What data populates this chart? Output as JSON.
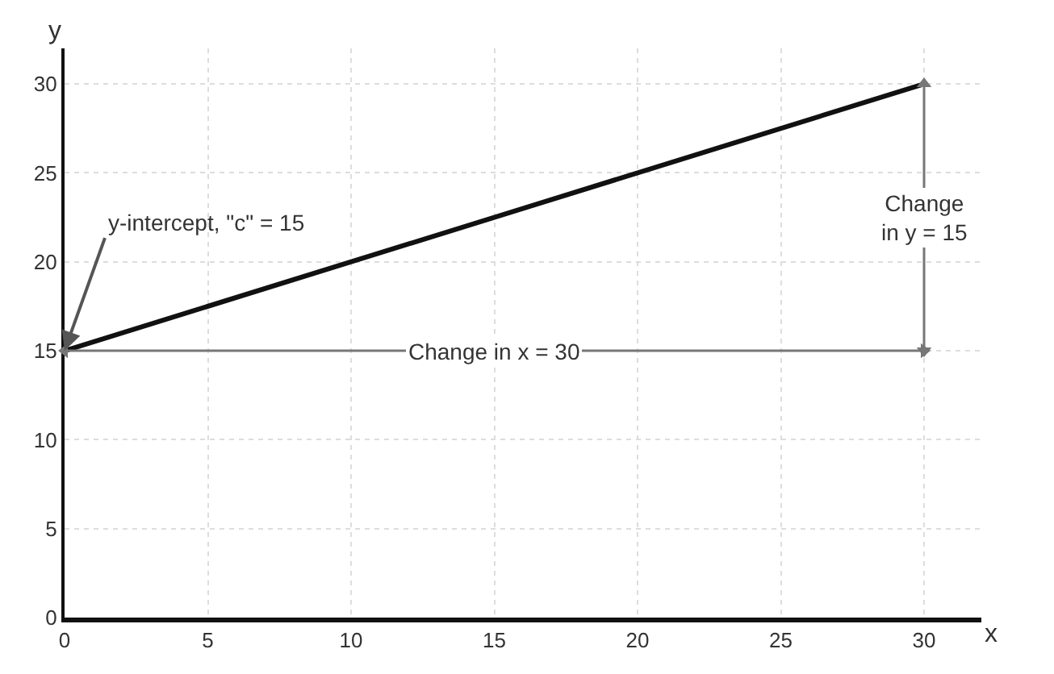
{
  "chart_data": {
    "type": "line",
    "xlabel": "x",
    "ylabel": "y",
    "x": [
      0,
      30
    ],
    "series": [
      {
        "color": "#111111",
        "values": [
          15,
          30
        ]
      },
      {
        "name": "Change in x = 30",
        "color": "#777777",
        "values": [
          15,
          15
        ],
        "marker": "triangle"
      },
      {
        "name": "Change\nin y = 15",
        "color": "#777777",
        "x": [
          30,
          30
        ],
        "values": [
          15,
          30
        ],
        "marker": "triangle"
      }
    ],
    "xlim": [
      0,
      32
    ],
    "ylim": [
      0,
      32
    ],
    "xticks": [
      0,
      5,
      10,
      15,
      20,
      25,
      30
    ],
    "yticks": [
      0,
      5,
      10,
      15,
      20,
      25,
      30
    ],
    "grid": true,
    "marker": "none",
    "line_style": "solid",
    "annotations": [
      {
        "text": "y-intercept, \"c\" = 15",
        "x": 0,
        "y": 15
      }
    ]
  }
}
